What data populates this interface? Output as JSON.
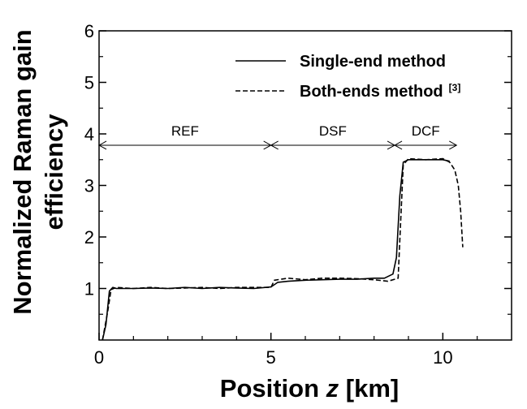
{
  "chart_data": {
    "type": "line",
    "xlabel_prefix": "Position ",
    "xlabel_var": "z",
    "xlabel_suffix": " [km]",
    "ylabel_line1": "Normalized Raman gain",
    "ylabel_line2": "efficiency",
    "xlim": [
      0,
      12
    ],
    "ylim": [
      0,
      6
    ],
    "x_ticks": [
      0,
      5,
      10
    ],
    "y_ticks": [
      1,
      2,
      3,
      4,
      5,
      6
    ],
    "grid": false,
    "legend": "top-right",
    "series": [
      {
        "name": "Single-end method",
        "style": "solid",
        "points": [
          [
            0.1,
            0.0
          ],
          [
            0.2,
            0.3
          ],
          [
            0.3,
            0.95
          ],
          [
            0.4,
            1.02
          ],
          [
            0.5,
            1.0
          ],
          [
            1.0,
            1.0
          ],
          [
            1.5,
            1.01
          ],
          [
            2.0,
            1.0
          ],
          [
            2.5,
            1.02
          ],
          [
            3.0,
            1.0
          ],
          [
            3.5,
            1.02
          ],
          [
            4.0,
            1.01
          ],
          [
            4.5,
            1.0
          ],
          [
            5.0,
            1.03
          ],
          [
            5.2,
            1.12
          ],
          [
            5.5,
            1.14
          ],
          [
            6.0,
            1.16
          ],
          [
            6.5,
            1.17
          ],
          [
            7.0,
            1.18
          ],
          [
            7.5,
            1.18
          ],
          [
            8.0,
            1.2
          ],
          [
            8.3,
            1.2
          ],
          [
            8.55,
            1.28
          ],
          [
            8.65,
            1.6
          ],
          [
            8.75,
            2.8
          ],
          [
            8.85,
            3.45
          ],
          [
            9.0,
            3.5
          ],
          [
            9.5,
            3.5
          ],
          [
            10.0,
            3.5
          ],
          [
            10.2,
            3.47
          ]
        ]
      },
      {
        "name": "Both-ends method",
        "superscript": "[3]",
        "style": "dashed",
        "points": [
          [
            0.1,
            0.0
          ],
          [
            0.25,
            0.55
          ],
          [
            0.35,
            0.98
          ],
          [
            0.5,
            1.02
          ],
          [
            1.0,
            1.0
          ],
          [
            1.5,
            1.02
          ],
          [
            2.0,
            1.0
          ],
          [
            2.5,
            1.01
          ],
          [
            3.0,
            1.02
          ],
          [
            3.5,
            1.0
          ],
          [
            4.0,
            1.02
          ],
          [
            4.5,
            1.02
          ],
          [
            5.0,
            1.02
          ],
          [
            5.1,
            1.16
          ],
          [
            5.5,
            1.2
          ],
          [
            6.0,
            1.17
          ],
          [
            6.5,
            1.2
          ],
          [
            7.0,
            1.2
          ],
          [
            7.5,
            1.19
          ],
          [
            8.0,
            1.17
          ],
          [
            8.4,
            1.14
          ],
          [
            8.7,
            1.2
          ],
          [
            8.78,
            2.4
          ],
          [
            8.85,
            3.4
          ],
          [
            9.0,
            3.52
          ],
          [
            9.5,
            3.5
          ],
          [
            10.0,
            3.52
          ],
          [
            10.2,
            3.45
          ],
          [
            10.35,
            3.3
          ],
          [
            10.45,
            3.0
          ],
          [
            10.52,
            2.5
          ],
          [
            10.58,
            1.8
          ]
        ]
      }
    ],
    "regions": [
      {
        "label": "REF",
        "from": 0.0,
        "to": 5.0
      },
      {
        "label": "DSF",
        "from": 5.0,
        "to": 8.6
      },
      {
        "label": "DCF",
        "from": 8.6,
        "to": 10.4
      }
    ],
    "region_arrow_y": 3.78
  }
}
